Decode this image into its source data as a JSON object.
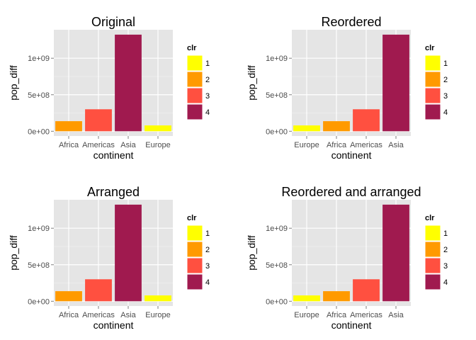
{
  "legend_colors": {
    "1": "#ffff00",
    "2": "#ff9a00",
    "3": "#ff5040",
    "4": "#a01a4f"
  },
  "panel_background": "#e5e5e5",
  "chart_data": [
    {
      "type": "bar",
      "title": "Original",
      "xlabel": "continent",
      "ylabel": "pop_diff",
      "categories": [
        "Africa",
        "Americas",
        "Asia",
        "Europe"
      ],
      "values": [
        138000000,
        301000000,
        1323000000,
        80000000
      ],
      "fill_group": [
        "2",
        "3",
        "4",
        "1"
      ],
      "ylim": [
        -65000000,
        1390000000
      ],
      "yticks": [
        0,
        500000000,
        1000000000
      ],
      "ytick_labels": [
        "0e+00",
        "5e+08",
        "1e+09"
      ],
      "legend": {
        "title": "clr",
        "items": [
          "1",
          "2",
          "3",
          "4"
        ],
        "position": "right"
      },
      "grid": true
    },
    {
      "type": "bar",
      "title": "Reordered",
      "xlabel": "continent",
      "ylabel": "pop_diff",
      "categories": [
        "Europe",
        "Africa",
        "Americas",
        "Asia"
      ],
      "values": [
        80000000,
        138000000,
        301000000,
        1323000000
      ],
      "fill_group": [
        "1",
        "2",
        "3",
        "4"
      ],
      "ylim": [
        -65000000,
        1390000000
      ],
      "yticks": [
        0,
        500000000,
        1000000000
      ],
      "ytick_labels": [
        "0e+00",
        "5e+08",
        "1e+09"
      ],
      "legend": {
        "title": "clr",
        "items": [
          "1",
          "2",
          "3",
          "4"
        ],
        "position": "right"
      },
      "grid": true
    },
    {
      "type": "bar",
      "title": "Arranged",
      "xlabel": "continent",
      "ylabel": "pop_diff",
      "categories": [
        "Africa",
        "Americas",
        "Asia",
        "Europe"
      ],
      "values": [
        138000000,
        301000000,
        1323000000,
        80000000
      ],
      "fill_group": [
        "2",
        "3",
        "4",
        "1"
      ],
      "ylim": [
        -65000000,
        1390000000
      ],
      "yticks": [
        0,
        500000000,
        1000000000
      ],
      "ytick_labels": [
        "0e+00",
        "5e+08",
        "1e+09"
      ],
      "legend": {
        "title": "clr",
        "items": [
          "1",
          "2",
          "3",
          "4"
        ],
        "position": "right"
      },
      "grid": true
    },
    {
      "type": "bar",
      "title": "Reordered and arranged",
      "xlabel": "continent",
      "ylabel": "pop_diff",
      "categories": [
        "Europe",
        "Africa",
        "Americas",
        "Asia"
      ],
      "values": [
        80000000,
        138000000,
        301000000,
        1323000000
      ],
      "fill_group": [
        "1",
        "2",
        "3",
        "4"
      ],
      "ylim": [
        -65000000,
        1390000000
      ],
      "yticks": [
        0,
        500000000,
        1000000000
      ],
      "ytick_labels": [
        "0e+00",
        "5e+08",
        "1e+09"
      ],
      "legend": {
        "title": "clr",
        "items": [
          "1",
          "2",
          "3",
          "4"
        ],
        "position": "right"
      },
      "grid": true
    }
  ]
}
